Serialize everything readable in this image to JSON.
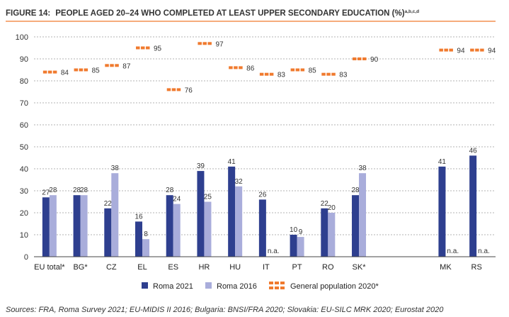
{
  "figure": {
    "label": "FIGURE 14:",
    "title": "PEOPLE AGED 20–24 WHO COMPLETED AT LEAST UPPER SECONDARY EDUCATION (%)",
    "title_sup": "a,b,c,d"
  },
  "source_note": "Sources: FRA, Roma Survey 2021; EU-MIDIS II 2016; Bulgaria: BNSI/FRA 2020; Slovakia: EU-SILC MRK 2020; Eurostat 2020",
  "na_label": "n.a.",
  "colors": {
    "roma2021": "#2e3f8f",
    "roma2016": "#a9addb",
    "general": "#f07a2e",
    "grid": "#9a9a9a",
    "axis": "#444444"
  },
  "chart_data": {
    "type": "bar",
    "title": "PEOPLE AGED 20–24 WHO COMPLETED AT LEAST UPPER SECONDARY EDUCATION (%)",
    "ylim": [
      0,
      100
    ],
    "yticks": [
      0,
      10,
      20,
      30,
      40,
      50,
      60,
      70,
      80,
      90,
      100
    ],
    "grid": true,
    "legend_position": "bottom",
    "categories": [
      "EU total*",
      "BG*",
      "CZ",
      "EL",
      "ES",
      "HR",
      "HU",
      "IT",
      "PT",
      "RO",
      "SK*",
      "MK",
      "RS"
    ],
    "gap_before": [
      "MK"
    ],
    "series": [
      {
        "name": "Roma 2021",
        "kind": "bar",
        "values": [
          27,
          28,
          22,
          16,
          28,
          39,
          41,
          26,
          10,
          22,
          28,
          41,
          46
        ]
      },
      {
        "name": "Roma 2016",
        "kind": "bar",
        "values": [
          28,
          28,
          38,
          8,
          24,
          25,
          32,
          null,
          9,
          20,
          38,
          null,
          null
        ]
      },
      {
        "name": "General population 2020*",
        "kind": "marker",
        "values": [
          84,
          85,
          87,
          95,
          76,
          97,
          86,
          83,
          85,
          83,
          90,
          94,
          94
        ]
      }
    ]
  }
}
